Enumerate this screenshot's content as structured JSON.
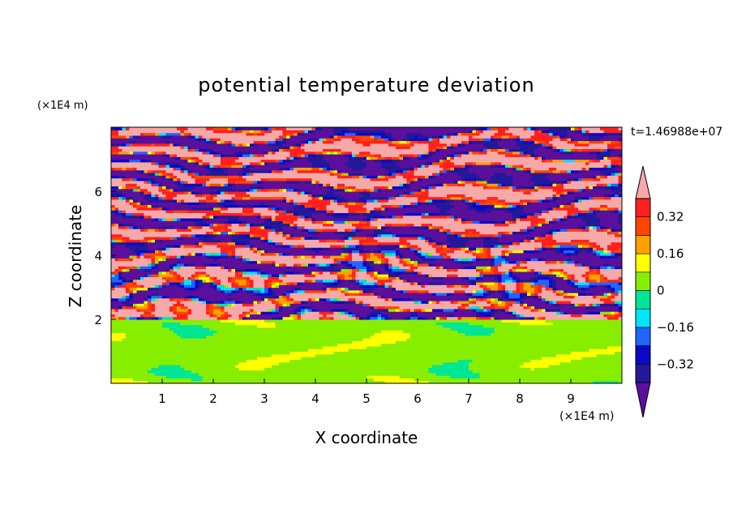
{
  "chart_data": {
    "type": "heatmap",
    "title": "potential temperature deviation",
    "xlabel": "X coordinate",
    "ylabel": "Z coordinate",
    "x_unit": "(×1E4 m)",
    "y_unit": "(×1E4 m)",
    "time_label": "t=1.46988e+07",
    "xlim": [
      0,
      10
    ],
    "ylim": [
      0,
      8
    ],
    "x_ticks": [
      "1",
      "2",
      "3",
      "4",
      "5",
      "6",
      "7",
      "8",
      "9"
    ],
    "y_ticks": [
      "2",
      "4",
      "6"
    ],
    "x_tick_values": [
      1,
      2,
      3,
      4,
      5,
      6,
      7,
      8,
      9
    ],
    "y_tick_values": [
      2,
      4,
      6
    ],
    "colorbar": {
      "tick_labels": [
        "0.32",
        "0.16",
        "0",
        "−0.16",
        "−0.32"
      ],
      "tick_values": [
        0.32,
        0.16,
        0,
        -0.16,
        -0.32
      ],
      "levels": [
        -0.4,
        -0.32,
        -0.24,
        -0.16,
        -0.08,
        0,
        0.08,
        0.16,
        0.24,
        0.32,
        0.4
      ],
      "colors": [
        "#5b0f9c",
        "#23189a",
        "#0a08c8",
        "#1f66ff",
        "#00e4ff",
        "#00e694",
        "#88ee00",
        "#ffff00",
        "#ffa000",
        "#ff4500",
        "#ff1f1f",
        "#f6a9a9"
      ],
      "extend": "both"
    },
    "mixed_layer_top_z": 2.0,
    "upper_band_pattern": "alternating layers of +0.4 and −0.4 above z≈2, mixed values near layer edges",
    "lower_region_values": [
      0.0,
      0.08
    ]
  }
}
